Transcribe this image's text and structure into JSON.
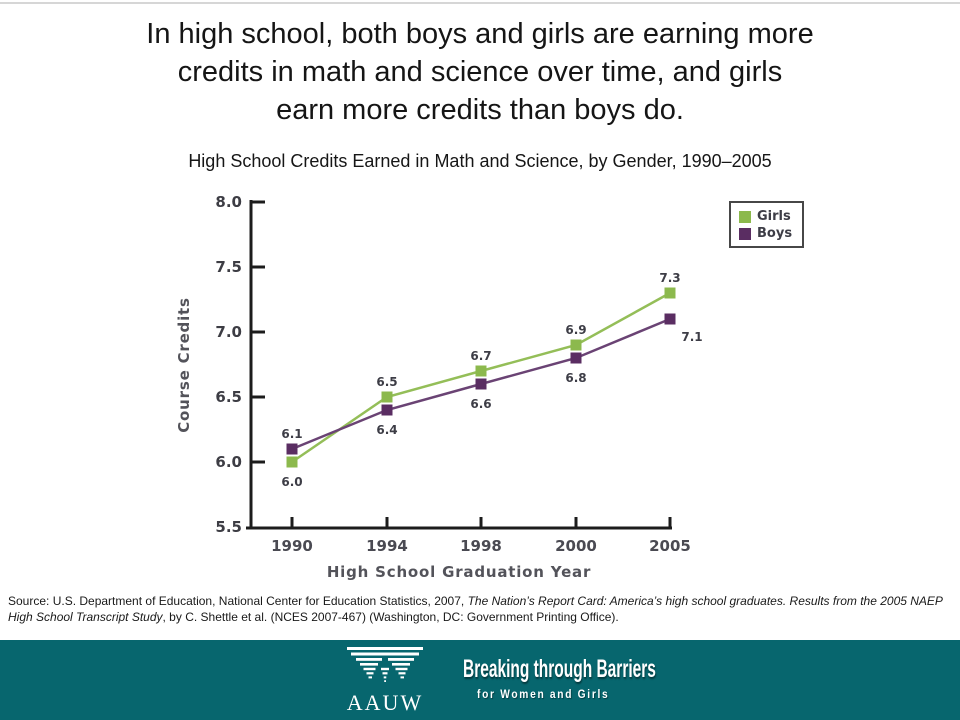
{
  "slide": {
    "title": "In high school, both boys and girls are earning more\ncredits in math and science over time, and girls\nearn more credits than boys do.",
    "source": {
      "prefix": "Source: U.S. Department of Education, National Center for Education Statistics, 2007, ",
      "italic": "The Nation’s Report Card: America’s high school graduates. Results from the 2005 NAEP High School Transcript Study",
      "suffix": ", by C. Shettle et al. (NCES 2007-467) (Washington, DC: Government Printing Office)."
    },
    "footer": {
      "logo_text": "AAUW",
      "tagline_main": "Breaking through Barriers",
      "tagline_sub": "for Women and Girls",
      "background_color": "#07666E"
    }
  },
  "chart_data": {
    "type": "line",
    "title": "High School Credits Earned in Math and Science, by Gender, 1990–2005",
    "xlabel": "High School Graduation Year",
    "ylabel": "Course Credits",
    "categories": [
      "1990",
      "1994",
      "1998",
      "2000",
      "2005"
    ],
    "series": [
      {
        "name": "Girls",
        "color": "#8CB94D",
        "line_color": "#94BE58",
        "values": [
          6.0,
          6.5,
          6.7,
          6.9,
          7.3
        ]
      },
      {
        "name": "Boys",
        "color": "#5A2D62",
        "line_color": "#6A4374",
        "values": [
          6.1,
          6.4,
          6.6,
          6.8,
          7.1
        ]
      }
    ],
    "ylim": [
      5.5,
      8.0
    ],
    "yticks": [
      "8.0",
      "7.5",
      "7.0",
      "6.5",
      "6.0",
      "5.5"
    ],
    "grid": false,
    "data_labels": true,
    "marker": "square",
    "legend_position": "top-right",
    "axis_color": "#1c1c1c"
  }
}
